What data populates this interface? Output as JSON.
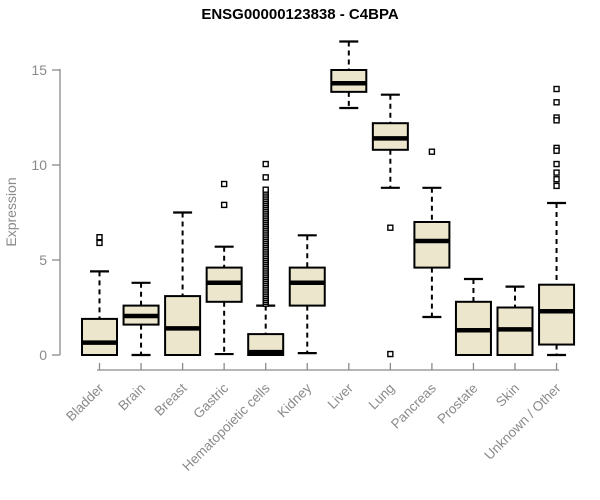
{
  "colors": {
    "box_fill": "#ECE6CD",
    "box_stroke": "#000000",
    "median": "#000000",
    "whisker": "#000000",
    "outlier_stroke": "#000000",
    "outlier_fill": "#ffffff",
    "axis": "#8a8a8a",
    "axis_text": "#8a8a8a",
    "title_text": "#000000",
    "background": "#ffffff"
  },
  "chart_data": {
    "type": "boxplot",
    "title": "ENSG00000123838 - C4BPA",
    "ylabel": "Expression",
    "xlabel": "",
    "yticks": [
      0,
      5,
      10,
      15
    ],
    "ylim": [
      0,
      16.6
    ],
    "grid": false,
    "legend": "none",
    "categories": [
      "Bladder",
      "Brain",
      "Breast",
      "Gastric",
      "Hematopoietic cells",
      "Kidney",
      "Liver",
      "Lung",
      "Pancreas",
      "Prostate",
      "Skin",
      "Unknown / Other"
    ],
    "boxes": [
      {
        "label": "Bladder",
        "low": 0.0,
        "q1": 0.0,
        "median": 0.65,
        "q3": 1.9,
        "high": 4.4,
        "outliers": [
          6.2,
          5.9
        ]
      },
      {
        "label": "Brain",
        "low": 0.0,
        "q1": 1.6,
        "median": 2.05,
        "q3": 2.6,
        "high": 3.8,
        "outliers": []
      },
      {
        "label": "Breast",
        "low": 0.0,
        "q1": 0.0,
        "median": 1.4,
        "q3": 3.1,
        "high": 7.5,
        "outliers": []
      },
      {
        "label": "Gastric",
        "low": 0.05,
        "q1": 2.8,
        "median": 3.8,
        "q3": 4.6,
        "high": 5.7,
        "outliers": [
          9.0,
          7.9
        ]
      },
      {
        "label": "Hematopoietic cells",
        "low": 0.0,
        "q1": 0.0,
        "median": 0.15,
        "q3": 1.1,
        "high": 2.6,
        "outliers": [
          9.35,
          10.05
        ],
        "outlier_band": {
          "from": 2.7,
          "to": 8.7,
          "step": 0.1
        }
      },
      {
        "label": "Kidney",
        "low": 0.1,
        "q1": 2.6,
        "median": 3.8,
        "q3": 4.6,
        "high": 6.3,
        "outliers": []
      },
      {
        "label": "Liver",
        "low": 13.0,
        "q1": 13.85,
        "median": 14.3,
        "q3": 15.0,
        "high": 16.5,
        "outliers": []
      },
      {
        "label": "Lung",
        "low": 8.8,
        "q1": 10.8,
        "median": 11.4,
        "q3": 12.2,
        "high": 13.7,
        "outliers": [
          6.7,
          0.05
        ]
      },
      {
        "label": "Pancreas",
        "low": 2.0,
        "q1": 4.6,
        "median": 6.0,
        "q3": 7.0,
        "high": 8.8,
        "outliers": [
          10.7
        ]
      },
      {
        "label": "Prostate",
        "low": 0.0,
        "q1": 0.0,
        "median": 1.3,
        "q3": 2.8,
        "high": 4.0,
        "outliers": []
      },
      {
        "label": "Skin",
        "low": 0.0,
        "q1": 0.0,
        "median": 1.35,
        "q3": 2.5,
        "high": 3.6,
        "outliers": []
      },
      {
        "label": "Unknown / Other",
        "low": 0.0,
        "q1": 0.55,
        "median": 2.3,
        "q3": 3.7,
        "high": 8.0,
        "outliers": [
          14.0,
          13.3,
          12.5,
          12.35,
          10.9,
          10.75,
          10.05,
          9.6,
          9.25,
          8.9
        ]
      }
    ]
  }
}
